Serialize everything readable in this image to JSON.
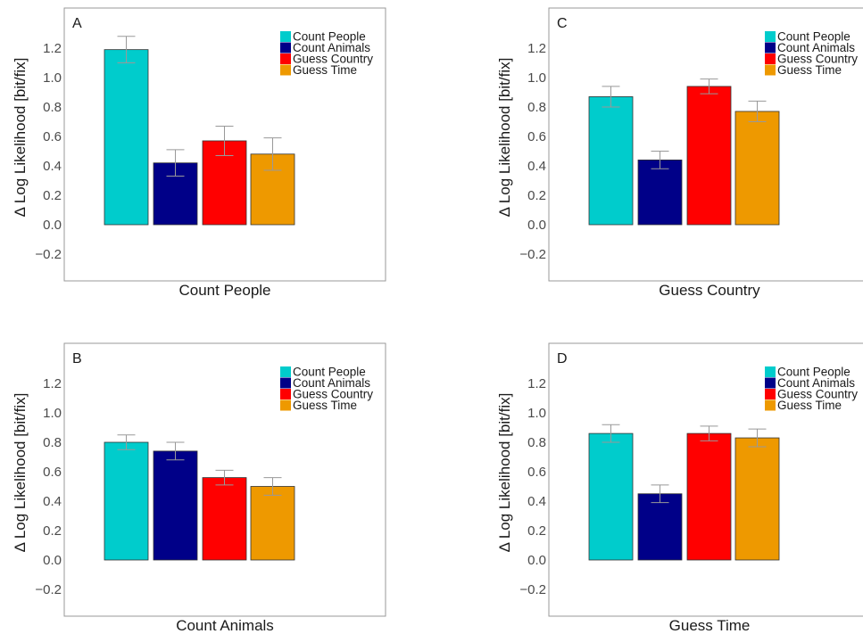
{
  "colors": {
    "count_people": "#00CCCC",
    "count_animals": "#000088",
    "guess_country": "#FF0000",
    "guess_time": "#EE9900",
    "error_bar": "#999999",
    "frame": "#999999"
  },
  "chart_data": [
    {
      "type": "bar",
      "panel": "A",
      "xlabel": "Count People",
      "ylabel": "Δ Log Likelihood [bit/fix]",
      "ylim": [
        -0.38,
        1.47
      ],
      "yticks": [
        "−0.2",
        "0.0",
        "0.2",
        "0.4",
        "0.6",
        "0.8",
        "1.0",
        "1.2"
      ],
      "categories": [
        "Count People",
        "Count Animals",
        "Guess Country",
        "Guess Time"
      ],
      "values": [
        1.19,
        0.42,
        0.57,
        0.48
      ],
      "errors": [
        0.09,
        0.09,
        0.1,
        0.11
      ],
      "legend": [
        "Count People",
        "Count Animals",
        "Guess Country",
        "Guess Time"
      ],
      "legend_position": "top-right"
    },
    {
      "type": "bar",
      "panel": "B",
      "xlabel": "Count Animals",
      "ylabel": "Δ Log Likelihood [bit/fix]",
      "ylim": [
        -0.38,
        1.47
      ],
      "yticks": [
        "−0.2",
        "0.0",
        "0.2",
        "0.4",
        "0.6",
        "0.8",
        "1.0",
        "1.2"
      ],
      "categories": [
        "Count People",
        "Count Animals",
        "Guess Country",
        "Guess Time"
      ],
      "values": [
        0.8,
        0.74,
        0.56,
        0.5
      ],
      "errors": [
        0.05,
        0.06,
        0.05,
        0.06
      ],
      "legend": [
        "Count People",
        "Count Animals",
        "Guess Country",
        "Guess Time"
      ],
      "legend_position": "top-right"
    },
    {
      "type": "bar",
      "panel": "C",
      "xlabel": "Guess Country",
      "ylabel": "Δ Log Likelihood [bit/fix]",
      "ylim": [
        -0.38,
        1.47
      ],
      "yticks": [
        "−0.2",
        "0.0",
        "0.2",
        "0.4",
        "0.6",
        "0.8",
        "1.0",
        "1.2"
      ],
      "categories": [
        "Count People",
        "Count Animals",
        "Guess Country",
        "Guess Time"
      ],
      "values": [
        0.87,
        0.44,
        0.94,
        0.77
      ],
      "errors": [
        0.07,
        0.06,
        0.05,
        0.07
      ],
      "legend": [
        "Count People",
        "Count Animals",
        "Guess Country",
        "Guess Time"
      ],
      "legend_position": "top-right"
    },
    {
      "type": "bar",
      "panel": "D",
      "xlabel": "Guess Time",
      "ylabel": "Δ Log Likelihood [bit/fix]",
      "ylim": [
        -0.38,
        1.47
      ],
      "yticks": [
        "−0.2",
        "0.0",
        "0.2",
        "0.4",
        "0.6",
        "0.8",
        "1.0",
        "1.2"
      ],
      "categories": [
        "Count People",
        "Count Animals",
        "Guess Country",
        "Guess Time"
      ],
      "values": [
        0.86,
        0.45,
        0.86,
        0.83
      ],
      "errors": [
        0.06,
        0.06,
        0.05,
        0.06
      ],
      "legend": [
        "Count People",
        "Count Animals",
        "Guess Country",
        "Guess Time"
      ],
      "legend_position": "top-right"
    }
  ]
}
